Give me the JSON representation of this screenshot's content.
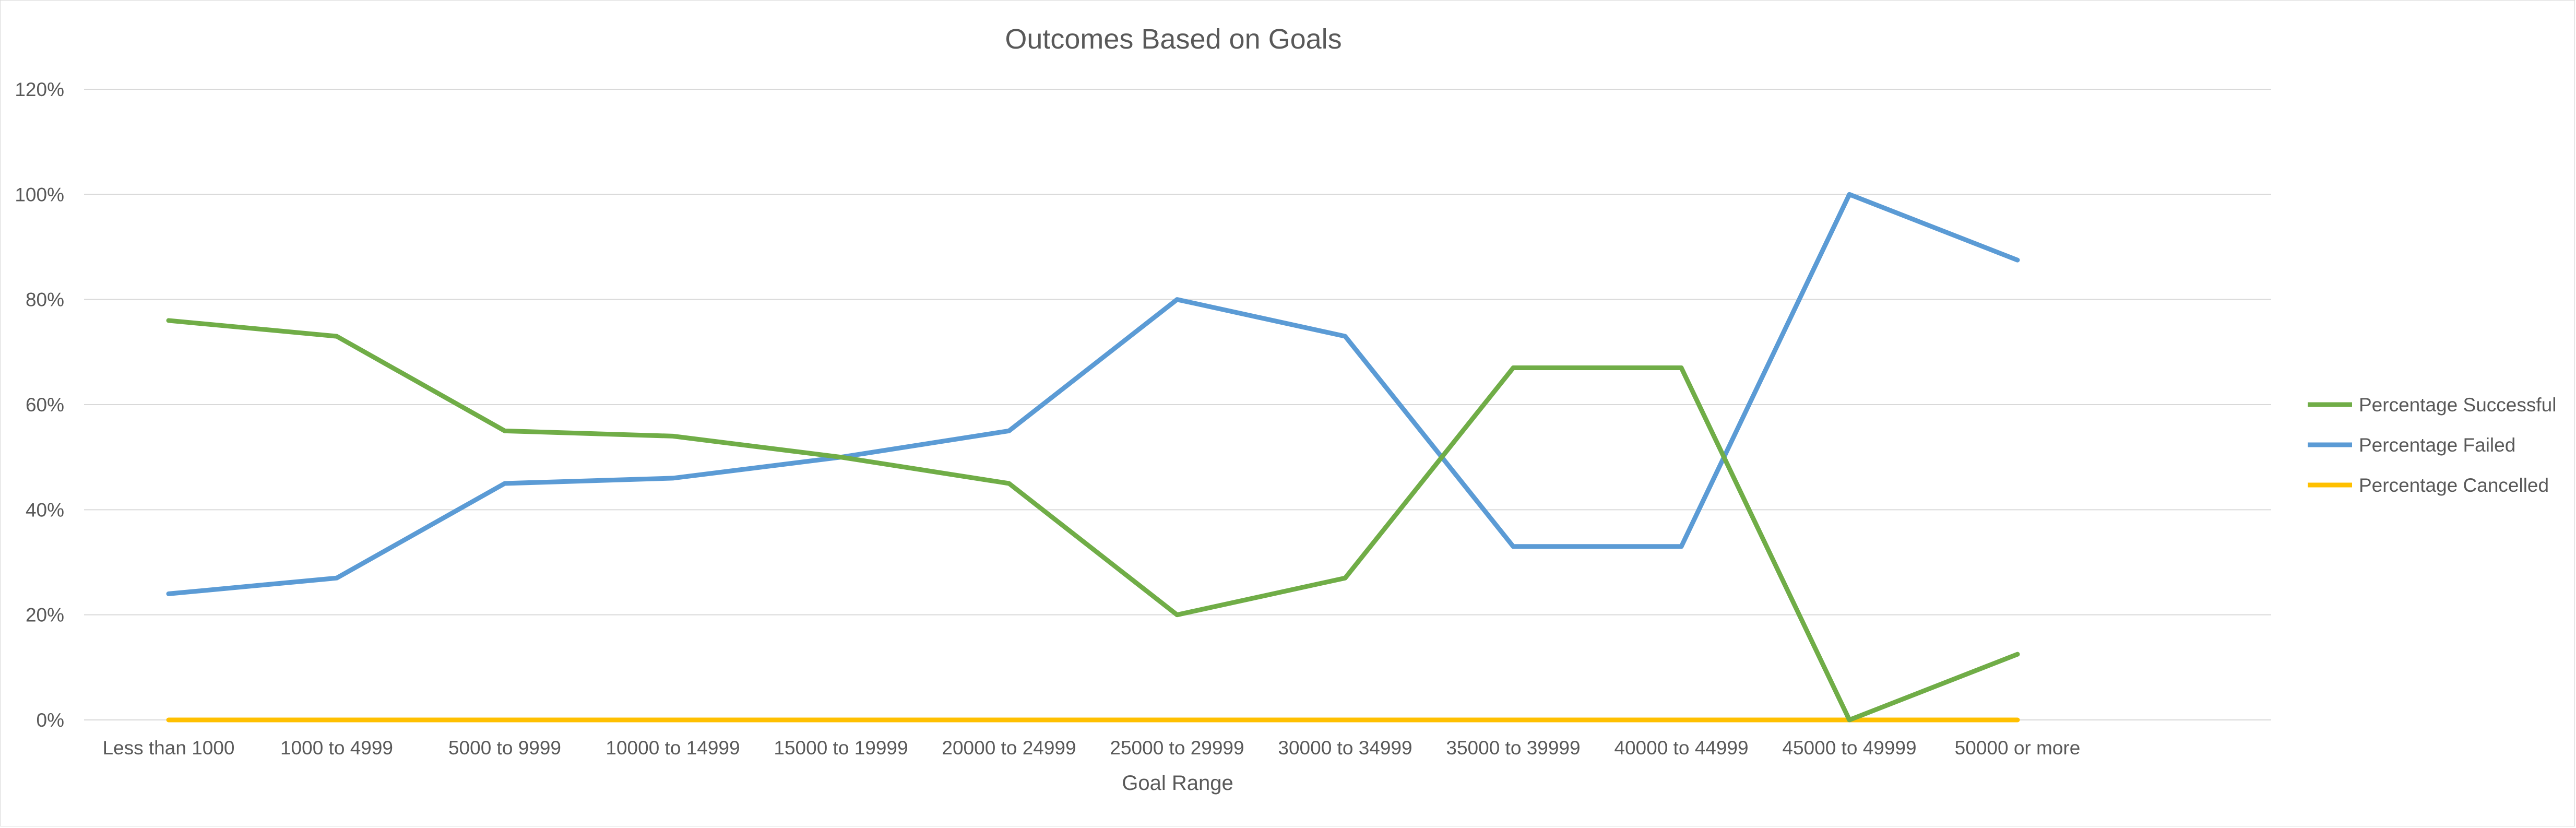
{
  "chart_data": {
    "type": "line",
    "title": "Outcomes Based on Goals",
    "xlabel": "Goal Range",
    "ylabel": "",
    "categories": [
      "Less than 1000",
      "1000 to 4999",
      "5000 to 9999",
      "10000 to 14999",
      "15000 to 19999",
      "20000 to 24999",
      "25000 to 29999",
      "30000 to 34999",
      "35000 to 39999",
      "40000 to 44999",
      "45000 to 49999",
      "50000 or more"
    ],
    "ylim": [
      0,
      1.2
    ],
    "yticks": [
      0,
      0.2,
      0.4,
      0.6,
      0.8,
      1.0,
      1.2
    ],
    "ytick_labels": [
      "0%",
      "20%",
      "40%",
      "60%",
      "80%",
      "100%",
      "120%"
    ],
    "grid": true,
    "legend_position": "right",
    "series": [
      {
        "name": "Percentage Successful",
        "color": "#70ad47",
        "values": [
          0.76,
          0.73,
          0.55,
          0.54,
          0.5,
          0.45,
          0.2,
          0.27,
          0.67,
          0.67,
          0.0,
          0.125
        ]
      },
      {
        "name": "Percentage Failed",
        "color": "#5b9bd5",
        "values": [
          0.24,
          0.27,
          0.45,
          0.46,
          0.5,
          0.55,
          0.8,
          0.73,
          0.33,
          0.33,
          1.0,
          0.875
        ]
      },
      {
        "name": "Percentage Cancelled",
        "color": "#ffc000",
        "values": [
          0,
          0,
          0,
          0,
          0,
          0,
          0,
          0,
          0,
          0,
          0,
          0
        ]
      }
    ]
  }
}
